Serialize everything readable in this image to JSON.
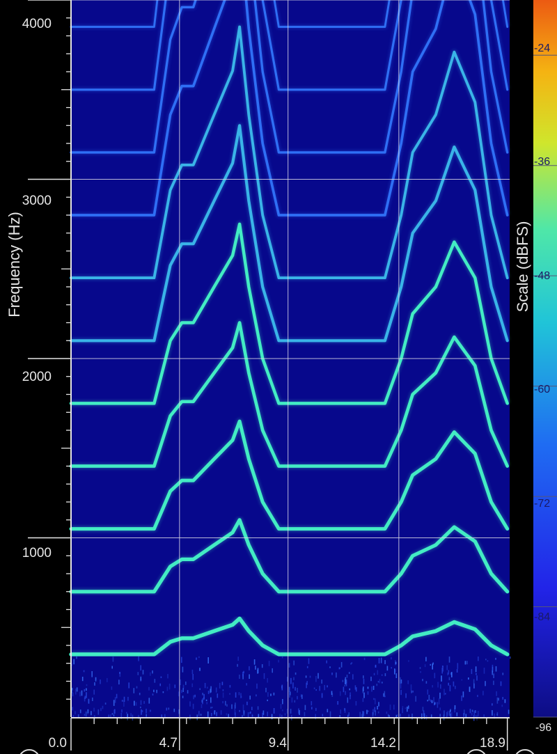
{
  "chart_data": {
    "type": "spectrogram",
    "ylabel": "Frequency (Hz)",
    "yticks": [
      1000,
      2000,
      3000,
      4000
    ],
    "ylim": [
      0,
      4000
    ],
    "xticks": [
      "0.0",
      "4.7",
      "9.4",
      "14.2",
      "18.9"
    ],
    "xlim": [
      0,
      19.0
    ],
    "grid": true,
    "colorbar": {
      "label": "Scale (dBFS)",
      "ticks": [
        "-24",
        "-36",
        "-48",
        "-60",
        "-72",
        "-84",
        "-96"
      ],
      "range": [
        -96,
        -18
      ]
    },
    "fundamental_track": {
      "time": [
        0,
        0.2,
        3.6,
        4.3,
        4.8,
        5.3,
        6.2,
        7.0,
        7.3,
        7.7,
        8.3,
        9.0,
        9.8,
        10.7,
        12.0,
        13.0,
        13.6,
        14.3,
        14.8,
        15.8,
        16.6,
        17.5,
        18.2,
        18.9
      ],
      "frequency_hz": [
        350,
        350,
        350,
        420,
        440,
        440,
        480,
        515,
        550,
        480,
        400,
        350,
        350,
        350,
        350,
        350,
        350,
        400,
        450,
        480,
        530,
        490,
        400,
        350
      ]
    },
    "harmonics_shown": 11,
    "colors": {
      "background": "#000000",
      "plot_background": "#07088c",
      "grid": "#d9d9e6",
      "track_weak": "#2f6ff5",
      "track_strong": "#43ecc4"
    }
  }
}
